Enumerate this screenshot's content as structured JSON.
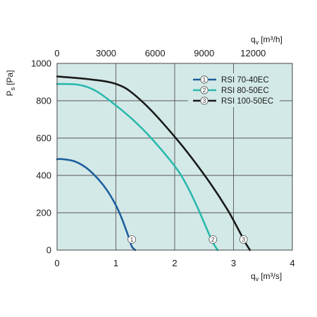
{
  "chart_data": {
    "type": "line",
    "x_axis": {
      "label_prefix": "q",
      "label_sub": "v",
      "unit": "[m³/s]",
      "range": [
        0,
        4
      ],
      "ticks": [
        "0",
        "1",
        "2",
        "3",
        "4"
      ]
    },
    "x_top_axis": {
      "label_prefix": "q",
      "label_sub": "v",
      "unit": "[m³/h]",
      "range_m3h": [
        0,
        14400
      ],
      "ticks": [
        "0",
        "3000",
        "6000",
        "9000",
        "12000"
      ],
      "tick_values": [
        0,
        3000,
        6000,
        9000,
        12000
      ]
    },
    "y_axis": {
      "label_prefix": "P",
      "label_sub": "s",
      "unit": "[Pa]",
      "range": [
        0,
        1000
      ],
      "ticks": [
        "0",
        "200",
        "400",
        "600",
        "800",
        "1000"
      ]
    },
    "grid": true,
    "legend_position": "top-right",
    "series": [
      {
        "name": "RSI 70-40EC",
        "marker": "1",
        "color": "#1e5f9e",
        "marker_at": 1.27,
        "points": [
          [
            0,
            487
          ],
          [
            0.1,
            487
          ],
          [
            0.3,
            475
          ],
          [
            0.5,
            440
          ],
          [
            0.7,
            380
          ],
          [
            0.85,
            320
          ],
          [
            1.0,
            240
          ],
          [
            1.1,
            170
          ],
          [
            1.2,
            85
          ],
          [
            1.27,
            20
          ],
          [
            1.33,
            0
          ]
        ]
      },
      {
        "name": "RSI 80-50EC",
        "marker": "2",
        "color": "#2ab9ae",
        "marker_at": 2.65,
        "points": [
          [
            0,
            890
          ],
          [
            0.3,
            888
          ],
          [
            0.5,
            875
          ],
          [
            0.7,
            845
          ],
          [
            1.0,
            775
          ],
          [
            1.3,
            695
          ],
          [
            1.6,
            600
          ],
          [
            2.0,
            450
          ],
          [
            2.2,
            350
          ],
          [
            2.4,
            220
          ],
          [
            2.55,
            110
          ],
          [
            2.65,
            40
          ],
          [
            2.73,
            0
          ]
        ]
      },
      {
        "name": "RSI 100-50EC",
        "marker": "3",
        "color": "#1a1a1a",
        "marker_at": 3.17,
        "points": [
          [
            0,
            930
          ],
          [
            0.4,
            920
          ],
          [
            0.8,
            905
          ],
          [
            1.0,
            890
          ],
          [
            1.2,
            860
          ],
          [
            1.5,
            780
          ],
          [
            1.8,
            680
          ],
          [
            2.2,
            530
          ],
          [
            2.6,
            360
          ],
          [
            2.9,
            215
          ],
          [
            3.1,
            100
          ],
          [
            3.2,
            40
          ],
          [
            3.28,
            0
          ]
        ]
      }
    ]
  }
}
